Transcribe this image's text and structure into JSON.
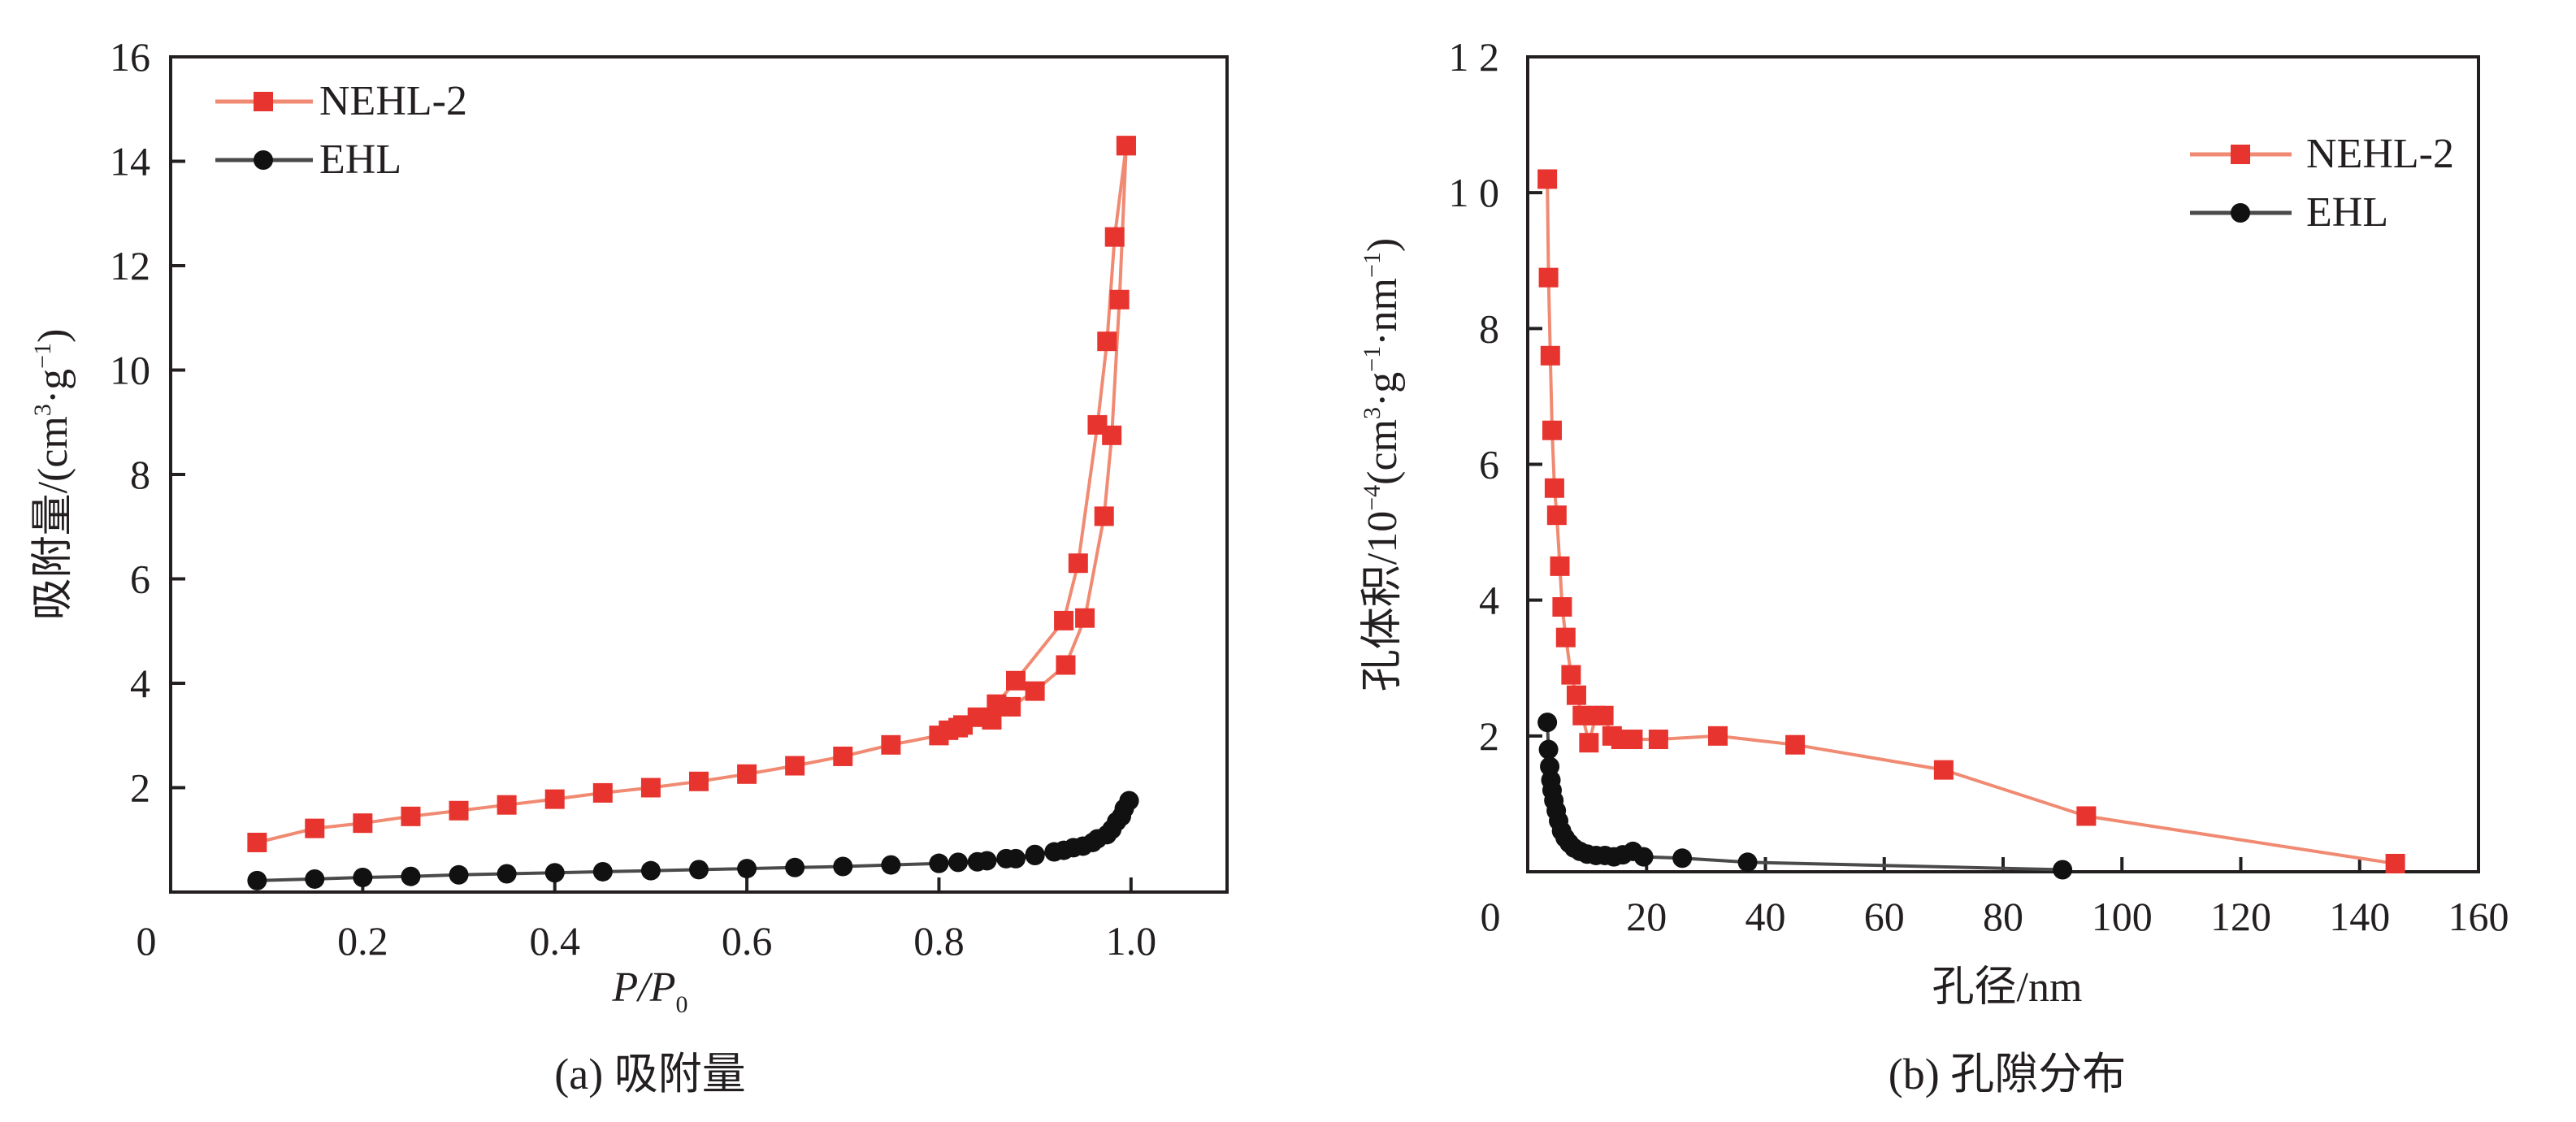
{
  "colors": {
    "nehl": "#f08a72",
    "nehl_marker": "#e8342f",
    "ehl": "#4a4a4a",
    "ehl_marker": "#111111",
    "axis": "#231f20"
  },
  "chart_data": [
    {
      "type": "line",
      "caption": "(a) 吸附量",
      "xlabel_main": "P/P",
      "xlabel_sub": "0",
      "ylabel_main": "吸附量/(cm",
      "ylabel_sup1": "3",
      "ylabel_mid": "·g",
      "ylabel_sup2": "−1",
      "ylabel_end": ")",
      "xlim": [
        0,
        1.1
      ],
      "ylim": [
        0,
        16
      ],
      "xticks": [
        0.2,
        0.4,
        0.6,
        0.8,
        1.0
      ],
      "xtick_labels": [
        "0.2",
        "0.4",
        "0.6",
        "0.8",
        "1.0"
      ],
      "yticks": [
        2,
        4,
        6,
        8,
        10,
        12,
        14,
        16
      ],
      "ytick_labels": [
        "2",
        "4",
        "6",
        "8",
        "10",
        "12",
        "14",
        "16"
      ],
      "origin_label": "0",
      "legend_position": "top-left",
      "series": [
        {
          "name": "NEHL-2",
          "color_key": "nehl",
          "marker": "square",
          "lines": [
            [
              [
                0.09,
                0.95
              ],
              [
                0.15,
                1.22
              ],
              [
                0.2,
                1.32
              ],
              [
                0.25,
                1.45
              ],
              [
                0.3,
                1.56
              ],
              [
                0.35,
                1.67
              ],
              [
                0.4,
                1.78
              ],
              [
                0.45,
                1.9
              ],
              [
                0.5,
                2.0
              ],
              [
                0.55,
                2.12
              ],
              [
                0.6,
                2.26
              ],
              [
                0.65,
                2.42
              ],
              [
                0.7,
                2.6
              ],
              [
                0.75,
                2.82
              ],
              [
                0.8,
                3.0
              ],
              [
                0.82,
                3.15
              ],
              [
                0.84,
                3.35
              ],
              [
                0.86,
                3.6
              ],
              [
                0.88,
                4.05
              ],
              [
                0.93,
                5.2
              ],
              [
                0.945,
                6.3
              ],
              [
                0.965,
                8.95
              ],
              [
                0.975,
                10.55
              ],
              [
                0.983,
                12.55
              ],
              [
                0.995,
                14.3
              ]
            ],
            [
              [
                0.995,
                14.3
              ],
              [
                0.988,
                11.35
              ],
              [
                0.98,
                8.75
              ],
              [
                0.972,
                7.2
              ],
              [
                0.952,
                5.25
              ],
              [
                0.932,
                4.35
              ],
              [
                0.9,
                3.85
              ],
              [
                0.875,
                3.55
              ],
              [
                0.855,
                3.3
              ],
              [
                0.825,
                3.2
              ],
              [
                0.81,
                3.1
              ],
              [
                0.8,
                3.0
              ]
            ]
          ]
        },
        {
          "name": "EHL",
          "color_key": "ehl",
          "marker": "circle",
          "lines": [
            [
              [
                0.09,
                0.22
              ],
              [
                0.15,
                0.25
              ],
              [
                0.2,
                0.28
              ],
              [
                0.25,
                0.3
              ],
              [
                0.3,
                0.33
              ],
              [
                0.35,
                0.35
              ],
              [
                0.4,
                0.37
              ],
              [
                0.45,
                0.39
              ],
              [
                0.5,
                0.41
              ],
              [
                0.55,
                0.43
              ],
              [
                0.6,
                0.45
              ],
              [
                0.65,
                0.47
              ],
              [
                0.7,
                0.49
              ],
              [
                0.75,
                0.52
              ],
              [
                0.8,
                0.55
              ],
              [
                0.82,
                0.57
              ],
              [
                0.85,
                0.6
              ],
              [
                0.88,
                0.64
              ],
              [
                0.9,
                0.7
              ],
              [
                0.92,
                0.77
              ],
              [
                0.94,
                0.85
              ],
              [
                0.96,
                0.95
              ],
              [
                0.975,
                1.1
              ],
              [
                0.985,
                1.35
              ],
              [
                0.993,
                1.6
              ],
              [
                0.998,
                1.75
              ]
            ],
            [
              [
                0.998,
                1.75
              ],
              [
                0.99,
                1.45
              ],
              [
                0.98,
                1.2
              ],
              [
                0.965,
                1.02
              ],
              [
                0.95,
                0.88
              ],
              [
                0.93,
                0.8
              ],
              [
                0.9,
                0.72
              ],
              [
                0.87,
                0.64
              ],
              [
                0.84,
                0.58
              ],
              [
                0.8,
                0.55
              ]
            ]
          ]
        }
      ]
    },
    {
      "type": "line",
      "caption": "(b) 孔隙分布",
      "xlabel": "孔径/nm",
      "ylabel_main": "孔体积/10",
      "ylabel_sup0": "−4",
      "ylabel_mid": "(cm",
      "ylabel_sup1": "3",
      "ylabel_mid2": "·g",
      "ylabel_sup2": "−1",
      "ylabel_mid3": "·nm",
      "ylabel_sup3": "−1",
      "ylabel_end": ")",
      "xlim": [
        0,
        160
      ],
      "ylim": [
        0,
        12
      ],
      "xticks": [
        20,
        40,
        60,
        80,
        100,
        120,
        140,
        160
      ],
      "xtick_labels": [
        "20",
        "40",
        "60",
        "80",
        "100",
        "120",
        "140",
        "160"
      ],
      "yticks": [
        2,
        4,
        6,
        8,
        10,
        12
      ],
      "ytick_labels": [
        "2",
        "4",
        "6",
        "8",
        "1 0",
        "1 2"
      ],
      "origin_label": "0",
      "legend_position": "top-right",
      "series": [
        {
          "name": "NEHL-2",
          "color_key": "nehl",
          "marker": "square",
          "lines": [
            [
              [
                3.3,
                10.2
              ],
              [
                3.5,
                8.75
              ],
              [
                3.8,
                7.6
              ],
              [
                4.1,
                6.5
              ],
              [
                4.5,
                5.65
              ],
              [
                4.9,
                5.25
              ],
              [
                5.4,
                4.5
              ],
              [
                5.8,
                3.9
              ],
              [
                6.4,
                3.45
              ],
              [
                7.3,
                2.9
              ],
              [
                8.2,
                2.6
              ],
              [
                9.2,
                2.3
              ],
              [
                10.3,
                1.9
              ],
              [
                11.5,
                2.3
              ],
              [
                12.8,
                2.3
              ],
              [
                14.2,
                2.0
              ],
              [
                15.7,
                1.95
              ],
              [
                17.7,
                1.95
              ],
              [
                22,
                1.95
              ],
              [
                32,
                2.0
              ],
              [
                45,
                1.87
              ],
              [
                70,
                1.5
              ],
              [
                94,
                0.82
              ],
              [
                146,
                0.12
              ]
            ]
          ]
        },
        {
          "name": "EHL",
          "color_key": "ehl",
          "marker": "circle",
          "lines": [
            [
              [
                3.3,
                2.2
              ],
              [
                3.5,
                1.8
              ],
              [
                3.7,
                1.55
              ],
              [
                3.9,
                1.35
              ],
              [
                4.1,
                1.2
              ],
              [
                4.4,
                1.05
              ],
              [
                4.8,
                0.9
              ],
              [
                5.2,
                0.75
              ],
              [
                5.7,
                0.6
              ],
              [
                6.3,
                0.5
              ],
              [
                7.0,
                0.42
              ],
              [
                7.8,
                0.35
              ],
              [
                8.8,
                0.3
              ],
              [
                10,
                0.26
              ],
              [
                11.5,
                0.24
              ],
              [
                13,
                0.24
              ],
              [
                14.5,
                0.22
              ],
              [
                16,
                0.25
              ],
              [
                17.7,
                0.3
              ],
              [
                19.5,
                0.22
              ],
              [
                26,
                0.2
              ],
              [
                37,
                0.14
              ],
              [
                90,
                0.03
              ]
            ]
          ]
        }
      ]
    }
  ]
}
